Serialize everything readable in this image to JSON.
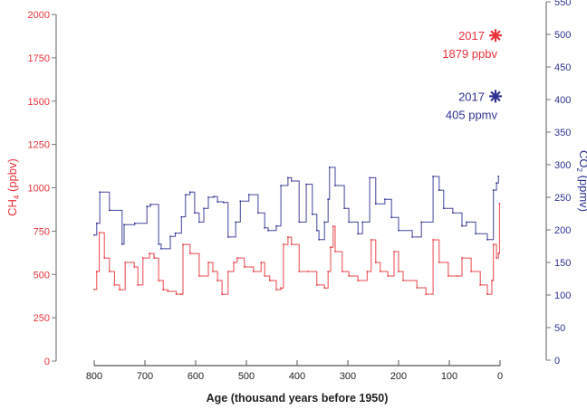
{
  "chart_data": {
    "type": "line",
    "xlabel": "Age (thousand years before 1950)",
    "xlim": [
      800,
      0
    ],
    "xticks": [
      "800",
      "700",
      "600",
      "500",
      "400",
      "300",
      "200",
      "100",
      "0"
    ],
    "grid": false,
    "colors": {
      "ch4": "#e8333a",
      "co2": "#2e3192"
    },
    "left_axis": {
      "label": "CH4 (ppbv)",
      "label_main": "CH",
      "label_sub": "4",
      "label_unit": " (ppbv)",
      "ylim": [
        0,
        2000
      ],
      "ticks": [
        "0",
        "250",
        "500",
        "750",
        "1000",
        "1250",
        "1500",
        "1750",
        "2000"
      ]
    },
    "right_axis": {
      "label": "CO2 (ppmv)",
      "label_main": "CO",
      "label_sub": "2",
      "label_unit": " (ppmv)",
      "ylim": [
        0,
        550
      ],
      "ticks": [
        "0",
        "50",
        "100",
        "150",
        "200",
        "250",
        "300",
        "350",
        "400",
        "450",
        "500",
        "550"
      ]
    },
    "series": [
      {
        "key": "ch4",
        "axis": "left",
        "x": [
          800,
          795,
          790,
          780,
          770,
          760,
          750,
          739,
          721,
          714,
          704,
          691,
          682,
          673,
          664,
          655,
          638,
          629,
          625,
          611,
          593,
          575,
          566,
          557,
          548,
          536,
          525,
          518,
          504,
          486,
          471,
          464,
          454,
          441,
          432,
          427,
          418,
          411,
          396,
          379,
          361,
          346,
          339,
          334,
          329,
          325,
          311,
          298,
          280,
          262,
          254,
          245,
          236,
          221,
          209,
          200,
          191,
          164,
          146,
          132,
          120,
          102,
          84,
          75,
          57,
          39,
          25,
          16,
          13,
          7,
          3,
          1
        ],
        "y": [
          413,
          517,
          741,
          595,
          517,
          439,
          412,
          569,
          543,
          439,
          595,
          621,
          595,
          465,
          412,
          402,
          386,
          386,
          673,
          621,
          491,
          569,
          517,
          465,
          386,
          517,
          569,
          595,
          543,
          517,
          569,
          491,
          465,
          412,
          422,
          673,
          715,
          673,
          517,
          517,
          439,
          422,
          517,
          657,
          778,
          632,
          517,
          491,
          465,
          517,
          700,
          569,
          517,
          491,
          632,
          517,
          465,
          423,
          386,
          700,
          569,
          491,
          491,
          595,
          517,
          439,
          386,
          465,
          673,
          595,
          621,
          909
        ]
      },
      {
        "key": "co2",
        "axis": "right",
        "x": [
          800,
          795,
          789,
          770,
          745,
          741,
          720,
          696,
          689,
          673,
          668,
          650,
          640,
          628,
          620,
          611,
          602,
          593,
          584,
          575,
          564,
          557,
          545,
          536,
          521,
          512,
          495,
          477,
          464,
          457,
          441,
          432,
          418,
          411,
          396,
          382,
          370,
          361,
          357,
          346,
          339,
          336,
          325,
          307,
          298,
          280,
          271,
          257,
          245,
          227,
          214,
          200,
          173,
          155,
          132,
          120,
          111,
          93,
          75,
          66,
          48,
          25,
          13,
          7,
          3
        ],
        "y": [
          192,
          210,
          258,
          230,
          178,
          208,
          210,
          236,
          239,
          178,
          171,
          190,
          195,
          220,
          254,
          258,
          226,
          212,
          233,
          250,
          251,
          243,
          242,
          189,
          212,
          244,
          254,
          226,
          203,
          199,
          206,
          268,
          280,
          275,
          212,
          270,
          224,
          199,
          185,
          212,
          247,
          296,
          268,
          233,
          212,
          194,
          212,
          280,
          240,
          247,
          219,
          199,
          189,
          212,
          282,
          261,
          233,
          226,
          206,
          212,
          194,
          185,
          261,
          272,
          282
        ]
      }
    ],
    "annotations": [
      {
        "key": "ch4",
        "year": "2017",
        "value_label": "1879 ppbv",
        "x": 0,
        "y": 1879,
        "marker": "asterisk"
      },
      {
        "key": "co2",
        "year": "2017",
        "value_label": "405 ppmv",
        "x": 0,
        "y": 405,
        "marker": "asterisk"
      }
    ]
  }
}
